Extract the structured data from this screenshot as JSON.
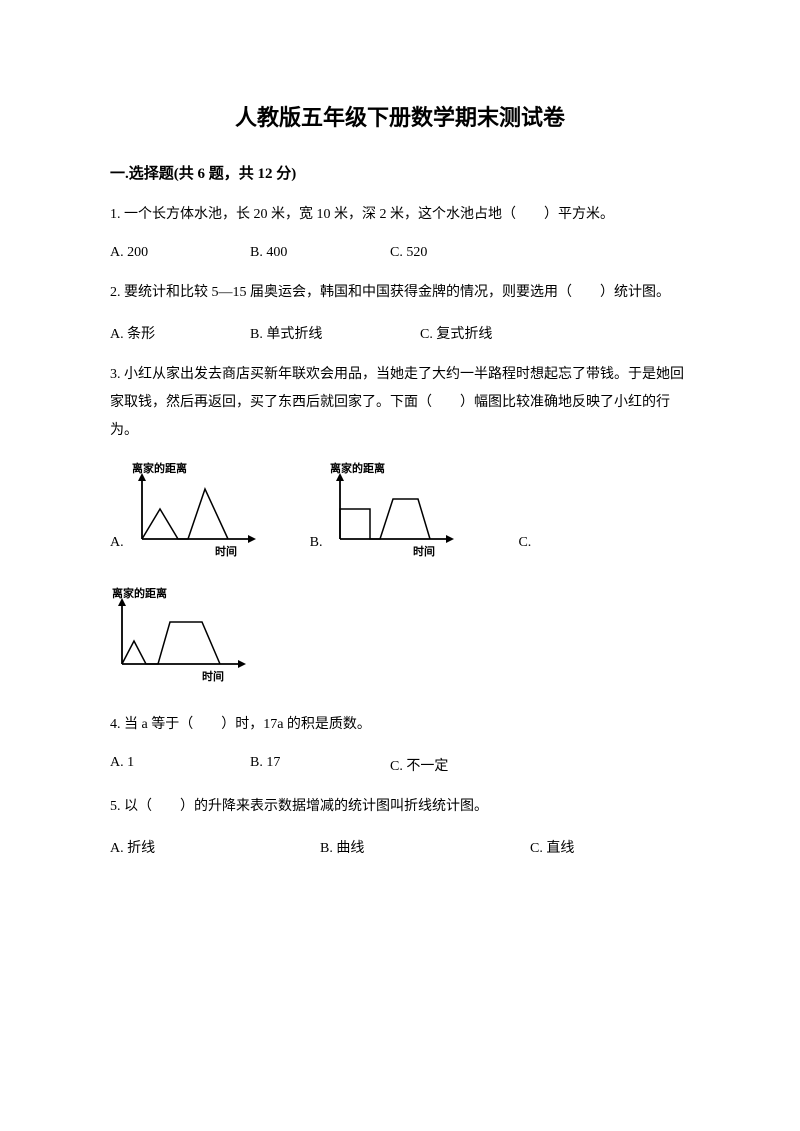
{
  "title": "人教版五年级下册数学期末测试卷",
  "section1": {
    "header": "一.选择题(共 6 题，共 12 分)",
    "q1": {
      "text": "1. 一个长方体水池，长 20 米，宽 10 米，深 2 米，这个水池占地（　　）平方米。",
      "optA": "A. 200",
      "optB": "B. 400",
      "optC": "C. 520"
    },
    "q2": {
      "text": "2. 要统计和比较 5—15 届奥运会，韩国和中国获得金牌的情况，则要选用（　　）统计图。",
      "optA": "A. 条形",
      "optB": "B. 单式折线",
      "optC": "C. 复式折线"
    },
    "q3": {
      "text": "3. 小红从家出发去商店买新年联欢会用品，当她走了大约一半路程时想起忘了带钱。于是她回家取钱，然后再返回，买了东西后就回家了。下面（　　）幅图比较准确地反映了小红的行为。",
      "labelA": "A.",
      "labelB": "B.",
      "labelC": "C.",
      "chart": {
        "ylabel": "离家的距离",
        "xlabel": "时间",
        "axis_color": "#000000",
        "line_color": "#000000",
        "line_width": 1.5,
        "axis_width": 1.8,
        "label_fontsize": 11,
        "chartA_points": [
          [
            12,
            78
          ],
          [
            30,
            48
          ],
          [
            48,
            78
          ],
          [
            58,
            78
          ],
          [
            75,
            28
          ],
          [
            98,
            78
          ]
        ],
        "chartB_points": [
          [
            12,
            78
          ],
          [
            12,
            48
          ],
          [
            42,
            48
          ],
          [
            42,
            78
          ],
          [
            52,
            78
          ],
          [
            65,
            38
          ],
          [
            90,
            38
          ],
          [
            102,
            78
          ]
        ],
        "chartC_points": [
          [
            12,
            78
          ],
          [
            24,
            55
          ],
          [
            36,
            78
          ],
          [
            48,
            78
          ],
          [
            60,
            36
          ],
          [
            92,
            36
          ],
          [
            110,
            78
          ]
        ]
      }
    },
    "q4": {
      "text": "4. 当 a 等于（　　）时，17a 的积是质数。",
      "optA": "A. 1",
      "optB": "B. 17",
      "optC": "C. 不一定"
    },
    "q5": {
      "text": "5. 以（　　）的升降来表示数据增减的统计图叫折线统计图。",
      "optA": "A. 折线",
      "optB": "B. 曲线",
      "optC": "C. 直线"
    }
  }
}
